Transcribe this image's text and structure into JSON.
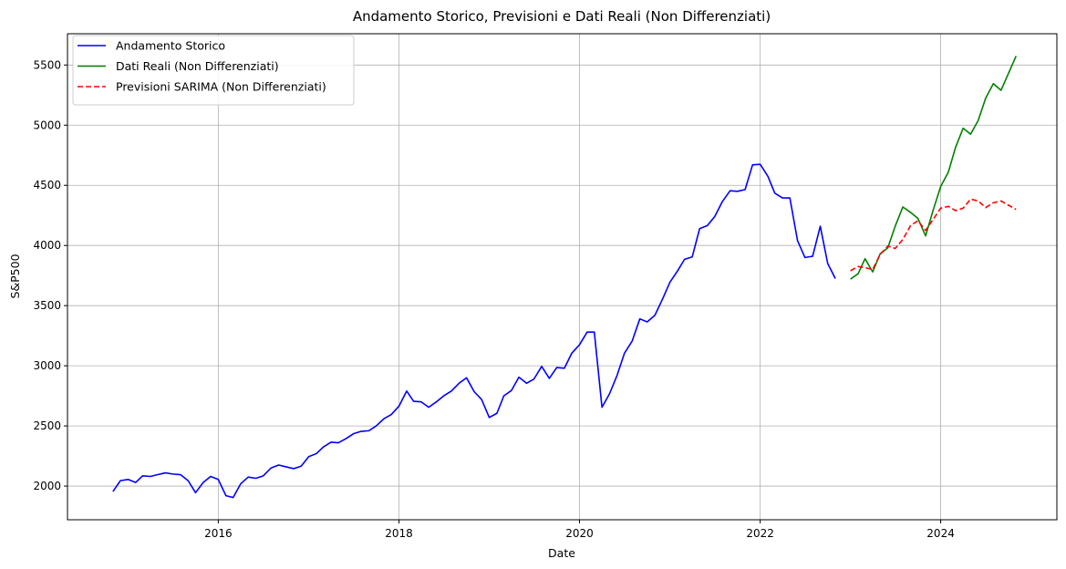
{
  "chart_data": {
    "type": "line",
    "title": "Andamento Storico, Previsioni e Dati Reali (Non Differenziati)",
    "xlabel": "Date",
    "ylabel": "S&P500",
    "xlim": [
      "2014-05-01",
      "2025-04-15"
    ],
    "ylim": [
      1720,
      5760
    ],
    "x_ticks": [
      "2016-01-01",
      "2018-01-01",
      "2020-01-01",
      "2022-01-01",
      "2024-01-01"
    ],
    "x_tick_labels": [
      "2016",
      "2018",
      "2020",
      "2022",
      "2024"
    ],
    "y_ticks": [
      2000,
      2500,
      3000,
      3500,
      4000,
      4500,
      5000,
      5500
    ],
    "y_tick_labels": [
      "2000",
      "2500",
      "3000",
      "3500",
      "4000",
      "4500",
      "5000",
      "5500"
    ],
    "grid": true,
    "legend_position": "top-left",
    "series": [
      {
        "name": "Andamento Storico",
        "color": "#0000ff",
        "dash": "solid",
        "points": [
          [
            "2014-11-01",
            1955
          ],
          [
            "2014-12-01",
            2045
          ],
          [
            "2015-01-01",
            2055
          ],
          [
            "2015-02-01",
            2030
          ],
          [
            "2015-03-01",
            2085
          ],
          [
            "2015-04-01",
            2080
          ],
          [
            "2015-05-01",
            2095
          ],
          [
            "2015-06-01",
            2110
          ],
          [
            "2015-07-01",
            2100
          ],
          [
            "2015-08-01",
            2095
          ],
          [
            "2015-09-01",
            2045
          ],
          [
            "2015-10-01",
            1945
          ],
          [
            "2015-11-01",
            2030
          ],
          [
            "2015-12-01",
            2080
          ],
          [
            "2016-01-01",
            2055
          ],
          [
            "2016-02-01",
            1920
          ],
          [
            "2016-03-01",
            1905
          ],
          [
            "2016-04-01",
            2020
          ],
          [
            "2016-05-01",
            2075
          ],
          [
            "2016-06-01",
            2065
          ],
          [
            "2016-07-01",
            2085
          ],
          [
            "2016-08-01",
            2150
          ],
          [
            "2016-09-01",
            2175
          ],
          [
            "2016-10-01",
            2160
          ],
          [
            "2016-11-01",
            2145
          ],
          [
            "2016-12-01",
            2165
          ],
          [
            "2017-01-01",
            2245
          ],
          [
            "2017-02-01",
            2270
          ],
          [
            "2017-03-01",
            2325
          ],
          [
            "2017-04-01",
            2365
          ],
          [
            "2017-05-01",
            2360
          ],
          [
            "2017-06-01",
            2395
          ],
          [
            "2017-07-01",
            2435
          ],
          [
            "2017-08-01",
            2455
          ],
          [
            "2017-09-01",
            2460
          ],
          [
            "2017-10-01",
            2500
          ],
          [
            "2017-11-01",
            2560
          ],
          [
            "2017-12-01",
            2595
          ],
          [
            "2018-01-01",
            2665
          ],
          [
            "2018-02-01",
            2790
          ],
          [
            "2018-03-01",
            2705
          ],
          [
            "2018-04-01",
            2700
          ],
          [
            "2018-05-01",
            2655
          ],
          [
            "2018-06-01",
            2700
          ],
          [
            "2018-07-01",
            2750
          ],
          [
            "2018-08-01",
            2790
          ],
          [
            "2018-09-01",
            2855
          ],
          [
            "2018-10-01",
            2900
          ],
          [
            "2018-11-01",
            2785
          ],
          [
            "2018-12-01",
            2720
          ],
          [
            "2019-01-01",
            2570
          ],
          [
            "2019-02-01",
            2605
          ],
          [
            "2019-03-01",
            2750
          ],
          [
            "2019-04-01",
            2795
          ],
          [
            "2019-05-01",
            2905
          ],
          [
            "2019-06-01",
            2855
          ],
          [
            "2019-07-01",
            2890
          ],
          [
            "2019-08-01",
            2995
          ],
          [
            "2019-09-01",
            2895
          ],
          [
            "2019-10-01",
            2985
          ],
          [
            "2019-11-01",
            2980
          ],
          [
            "2019-12-01",
            3105
          ],
          [
            "2020-01-01",
            3175
          ],
          [
            "2020-02-01",
            3280
          ],
          [
            "2020-03-01",
            3280
          ],
          [
            "2020-04-01",
            2655
          ],
          [
            "2020-05-01",
            2765
          ],
          [
            "2020-06-01",
            2920
          ],
          [
            "2020-07-01",
            3105
          ],
          [
            "2020-08-01",
            3205
          ],
          [
            "2020-09-01",
            3390
          ],
          [
            "2020-10-01",
            3365
          ],
          [
            "2020-11-01",
            3420
          ],
          [
            "2020-12-01",
            3550
          ],
          [
            "2021-01-01",
            3695
          ],
          [
            "2021-02-01",
            3790
          ],
          [
            "2021-03-01",
            3885
          ],
          [
            "2021-04-01",
            3905
          ],
          [
            "2021-05-01",
            4140
          ],
          [
            "2021-06-01",
            4165
          ],
          [
            "2021-07-01",
            4240
          ],
          [
            "2021-08-01",
            4365
          ],
          [
            "2021-09-01",
            4455
          ],
          [
            "2021-10-01",
            4450
          ],
          [
            "2021-11-01",
            4465
          ],
          [
            "2021-12-01",
            4670
          ],
          [
            "2022-01-01",
            4675
          ],
          [
            "2022-02-01",
            4575
          ],
          [
            "2022-03-01",
            4435
          ],
          [
            "2022-04-01",
            4395
          ],
          [
            "2022-05-01",
            4395
          ],
          [
            "2022-06-01",
            4040
          ],
          [
            "2022-07-01",
            3900
          ],
          [
            "2022-08-01",
            3910
          ],
          [
            "2022-09-01",
            4160
          ],
          [
            "2022-10-01",
            3850
          ],
          [
            "2022-11-01",
            3725
          ]
        ]
      },
      {
        "name": "Dati Reali (Non Differenziati)",
        "color": "#008000",
        "dash": "solid",
        "points": [
          [
            "2023-01-01",
            3720
          ],
          [
            "2023-02-01",
            3765
          ],
          [
            "2023-03-01",
            3890
          ],
          [
            "2023-04-01",
            3780
          ],
          [
            "2023-05-01",
            3930
          ],
          [
            "2023-06-01",
            3980
          ],
          [
            "2023-07-01",
            4160
          ],
          [
            "2023-08-01",
            4320
          ],
          [
            "2023-09-01",
            4275
          ],
          [
            "2023-10-01",
            4225
          ],
          [
            "2023-11-01",
            4080
          ],
          [
            "2023-12-01",
            4290
          ],
          [
            "2024-01-01",
            4490
          ],
          [
            "2024-02-01",
            4610
          ],
          [
            "2024-03-01",
            4815
          ],
          [
            "2024-04-01",
            4975
          ],
          [
            "2024-05-01",
            4925
          ],
          [
            "2024-06-01",
            5040
          ],
          [
            "2024-07-01",
            5225
          ],
          [
            "2024-08-01",
            5345
          ],
          [
            "2024-09-01",
            5290
          ],
          [
            "2024-10-01",
            5430
          ],
          [
            "2024-11-01",
            5575
          ]
        ]
      },
      {
        "name": "Previsioni SARIMA (Non Differenziati)",
        "color": "#ff0000",
        "dash": "dashed",
        "points": [
          [
            "2023-01-01",
            3790
          ],
          [
            "2023-02-01",
            3825
          ],
          [
            "2023-03-01",
            3815
          ],
          [
            "2023-04-01",
            3800
          ],
          [
            "2023-05-01",
            3925
          ],
          [
            "2023-06-01",
            3995
          ],
          [
            "2023-07-01",
            3975
          ],
          [
            "2023-08-01",
            4050
          ],
          [
            "2023-09-01",
            4165
          ],
          [
            "2023-10-01",
            4205
          ],
          [
            "2023-11-01",
            4125
          ],
          [
            "2023-12-01",
            4215
          ],
          [
            "2024-01-01",
            4310
          ],
          [
            "2024-02-01",
            4325
          ],
          [
            "2024-03-01",
            4290
          ],
          [
            "2024-04-01",
            4310
          ],
          [
            "2024-05-01",
            4385
          ],
          [
            "2024-06-01",
            4370
          ],
          [
            "2024-07-01",
            4315
          ],
          [
            "2024-08-01",
            4355
          ],
          [
            "2024-09-01",
            4370
          ],
          [
            "2024-10-01",
            4335
          ],
          [
            "2024-11-01",
            4300
          ]
        ]
      }
    ]
  }
}
